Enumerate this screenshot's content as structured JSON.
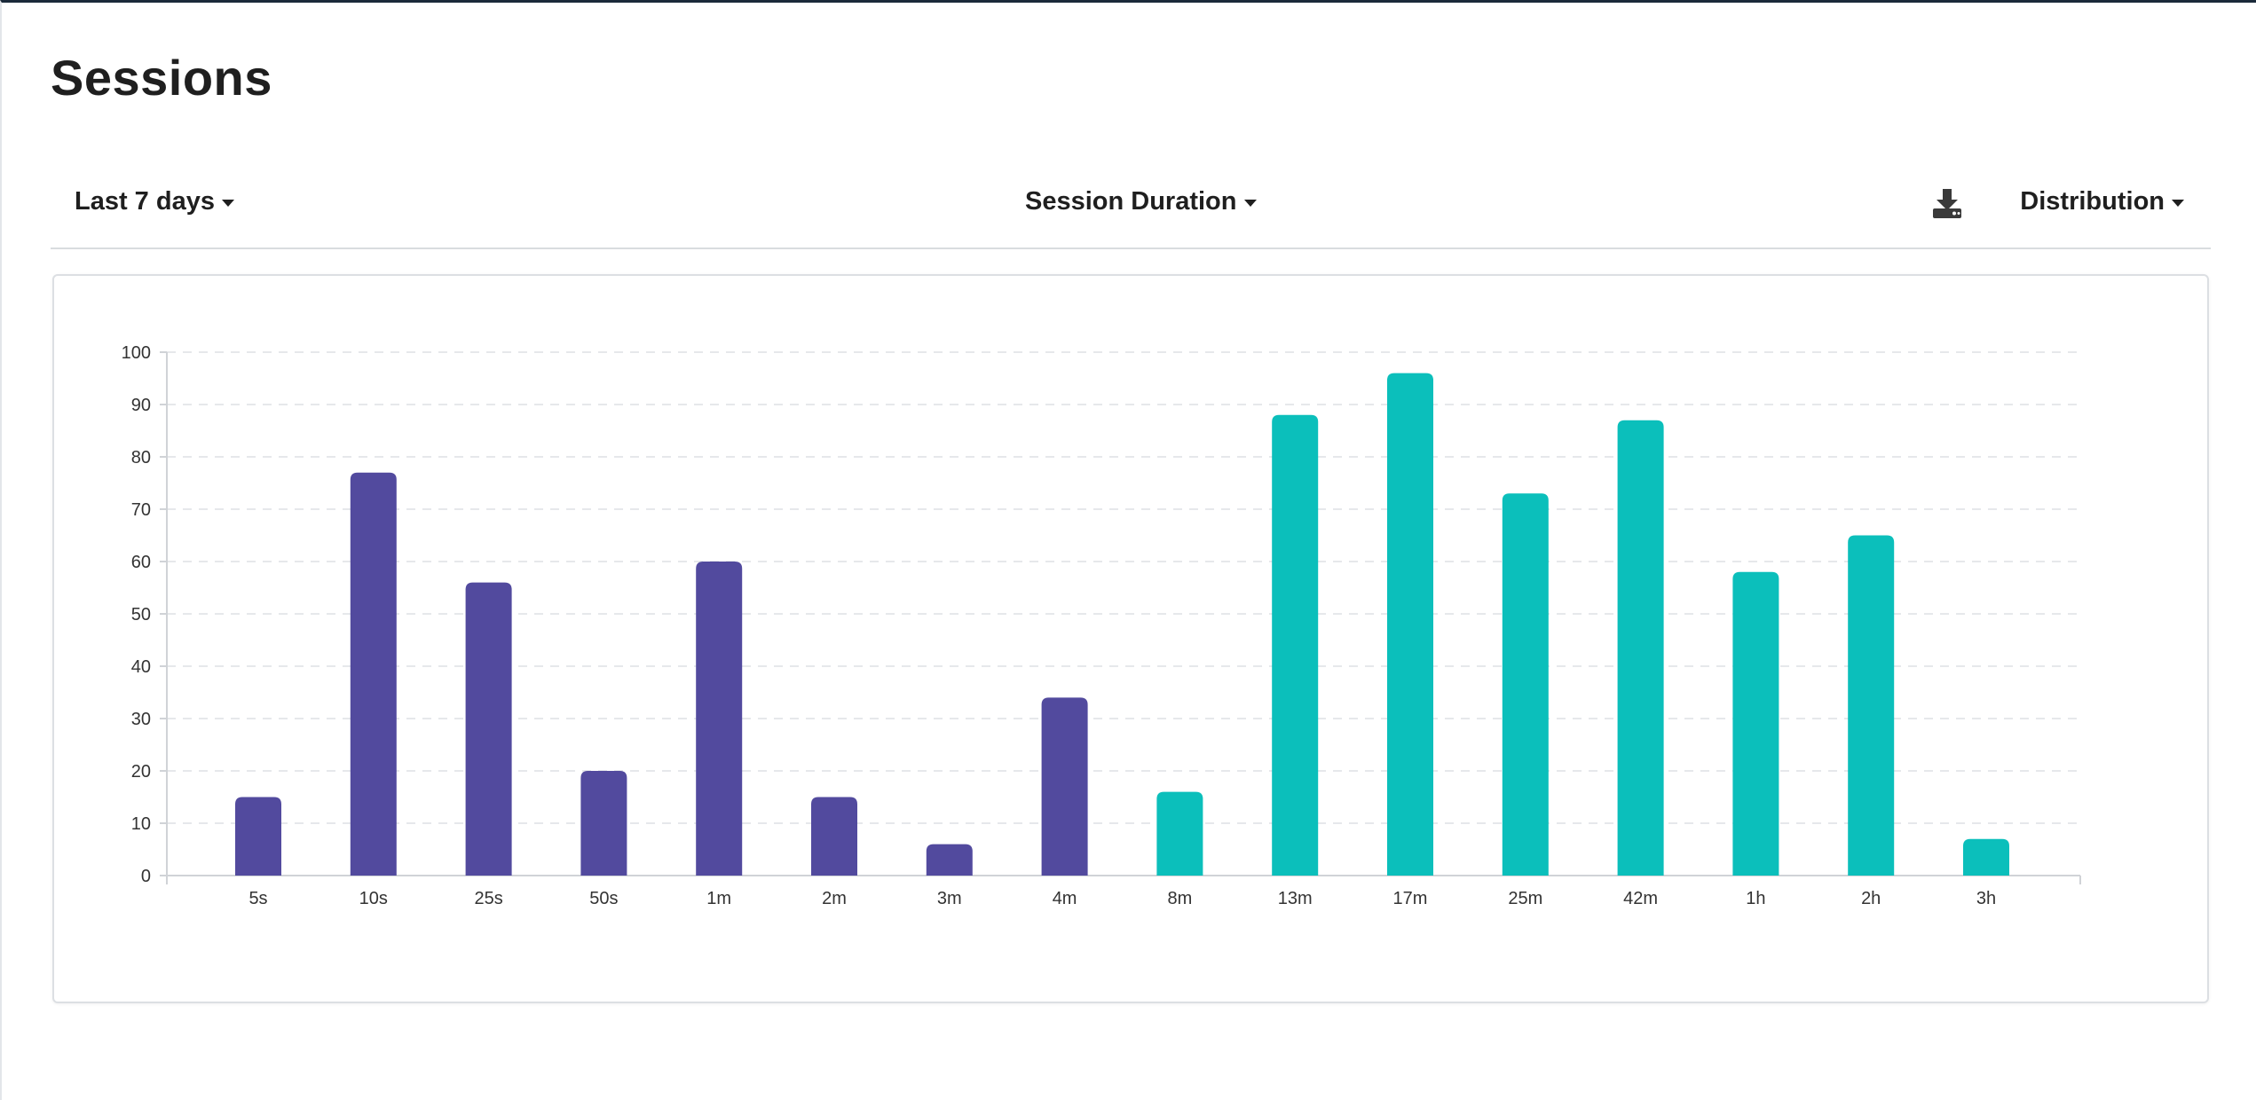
{
  "page": {
    "title": "Sessions"
  },
  "toolbar": {
    "range_label": "Last 7 days",
    "metric_label": "Session Duration",
    "view_label": "Distribution",
    "download_icon": "download-icon"
  },
  "colors": {
    "short_sessions": "#524a9e",
    "long_sessions": "#0bbfbb",
    "grid": "#e6e8eb"
  },
  "chart_data": {
    "type": "bar",
    "categories": [
      "5s",
      "10s",
      "25s",
      "50s",
      "1m",
      "2m",
      "3m",
      "4m",
      "8m",
      "13m",
      "17m",
      "25m",
      "42m",
      "1h",
      "2h",
      "3h"
    ],
    "values": [
      15,
      77,
      56,
      20,
      60,
      15,
      6,
      34,
      16,
      88,
      96,
      73,
      87,
      58,
      65,
      7
    ],
    "bar_colors": [
      "#524a9e",
      "#524a9e",
      "#524a9e",
      "#524a9e",
      "#524a9e",
      "#524a9e",
      "#524a9e",
      "#524a9e",
      "#0bbfbb",
      "#0bbfbb",
      "#0bbfbb",
      "#0bbfbb",
      "#0bbfbb",
      "#0bbfbb",
      "#0bbfbb",
      "#0bbfbb"
    ],
    "title": "",
    "xlabel": "",
    "ylabel": "",
    "ylim": [
      0,
      100
    ],
    "yticks": [
      0,
      10,
      20,
      30,
      40,
      50,
      60,
      70,
      80,
      90,
      100
    ],
    "grid": true,
    "legend": "none"
  }
}
